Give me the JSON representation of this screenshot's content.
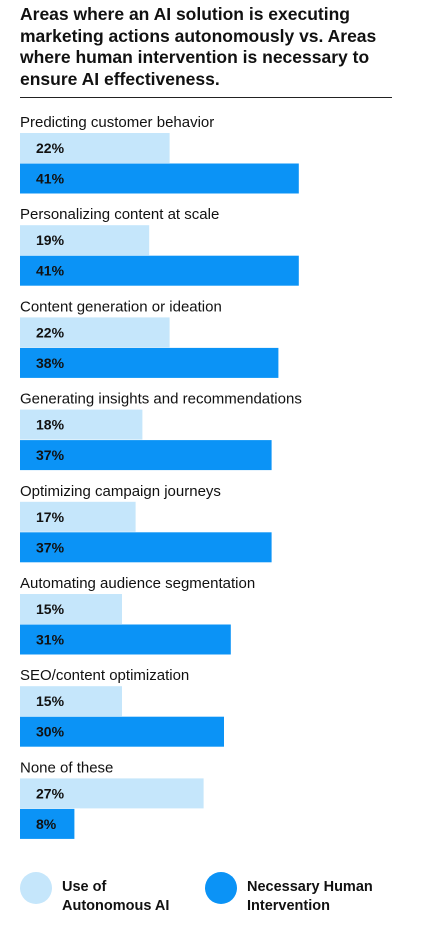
{
  "title": "Areas where an AI solution is executing marketing actions autonomously vs. Areas where human intervention is necessary to ensure AI effectiveness.",
  "colors": {
    "autonomous": "#c5e6fb",
    "human": "#0b93f6",
    "label_text": "#111111"
  },
  "legend": {
    "autonomous_line1": "Use of",
    "autonomous_line2": "Autonomous AI",
    "human_line1": "Necessary Human",
    "human_line2": "Intervention"
  },
  "chart_data": {
    "type": "bar",
    "orientation": "horizontal",
    "categories": [
      "Predicting customer behavior",
      "Personalizing content at scale",
      "Content generation or ideation",
      "Generating insights and recommendations",
      "Optimizing campaign journeys",
      "Automating audience segmentation",
      "SEO/content optimization",
      "None of these"
    ],
    "series": [
      {
        "name": "Use of Autonomous AI",
        "values": [
          22,
          19,
          22,
          18,
          17,
          15,
          15,
          27
        ],
        "labels": [
          "22%",
          "19%",
          "22%",
          "18%",
          "17%",
          "15%",
          "15%",
          "27%"
        ]
      },
      {
        "name": "Necessary Human Intervention",
        "values": [
          41,
          41,
          38,
          37,
          37,
          31,
          30,
          8
        ],
        "labels": [
          "41%",
          "41%",
          "38%",
          "37%",
          "37%",
          "31%",
          "30%",
          "8%"
        ]
      }
    ],
    "unit": "%",
    "legend_position": "bottom",
    "grid": false
  }
}
